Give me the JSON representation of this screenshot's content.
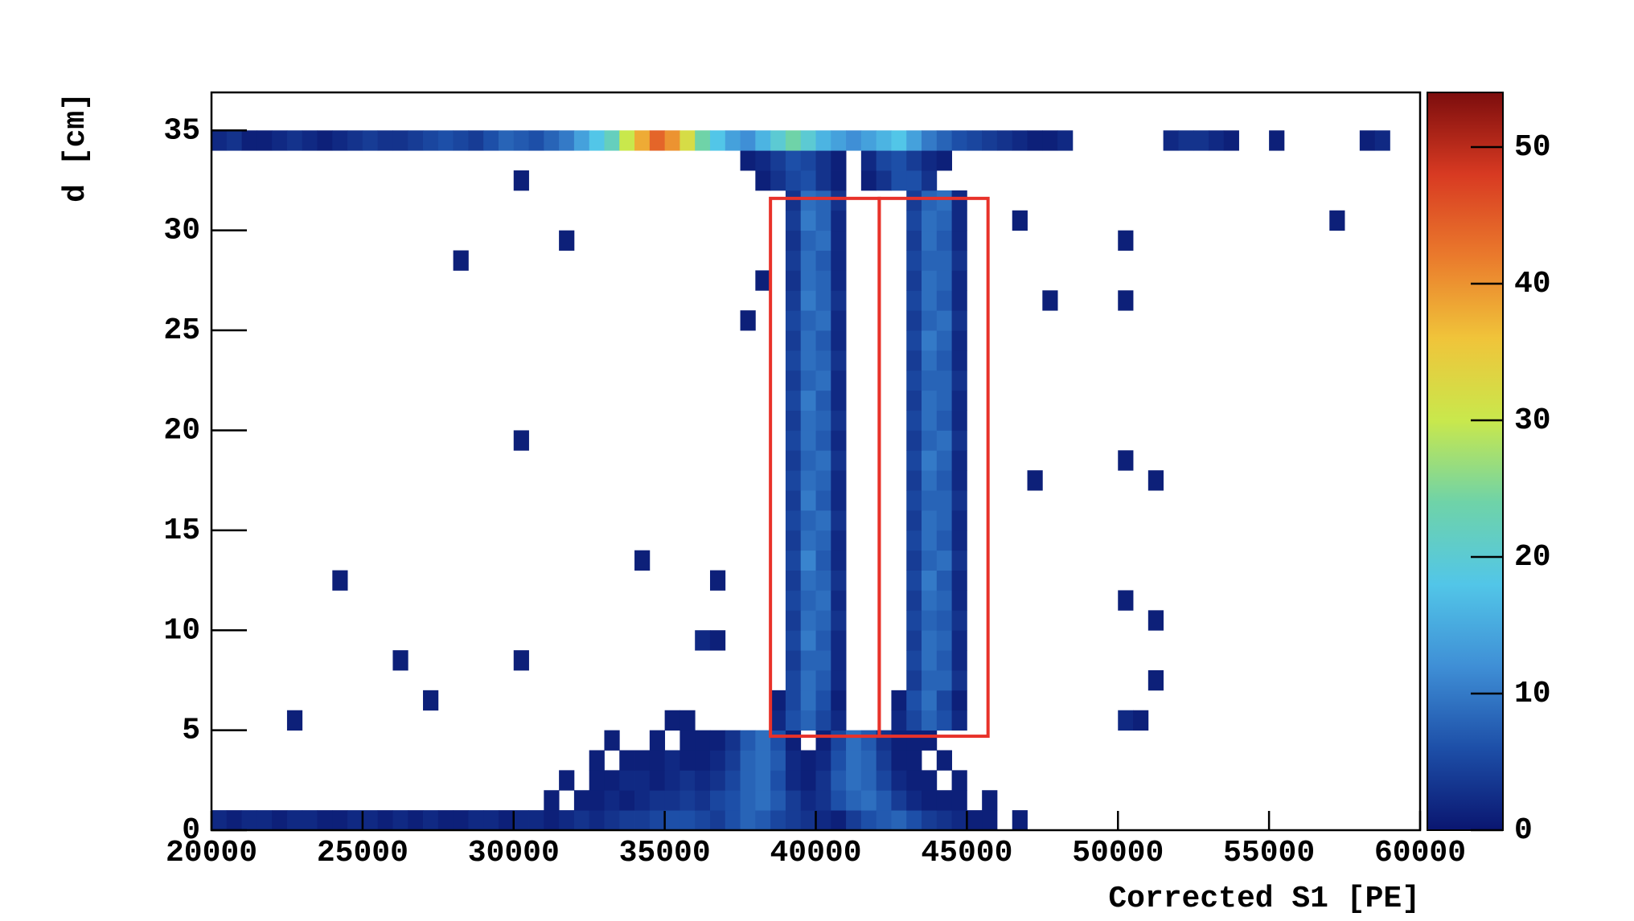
{
  "chart_data": {
    "type": "heatmap",
    "xlabel": "Corrected S1 [PE]",
    "ylabel": "d [cm]",
    "xlim": [
      20000,
      60000
    ],
    "xticks": [
      20000,
      25000,
      30000,
      35000,
      40000,
      45000,
      50000,
      55000,
      60000
    ],
    "ylim": [
      0,
      36.9
    ],
    "yticks": [
      0,
      5,
      10,
      15,
      20,
      25,
      30,
      35
    ],
    "zlim": [
      0,
      54
    ],
    "zticks": [
      0,
      10,
      20,
      30,
      40,
      50
    ],
    "colors": [
      "#0a1670",
      "#1d4fa8",
      "#3f8fd6",
      "#52c6e8",
      "#6fd3a8",
      "#c9e84c",
      "#f0c43a",
      "#ea7a2c",
      "#d83a22",
      "#7c0d0d"
    ],
    "xbin": 500,
    "ybin": 1,
    "runs": [
      [
        0,
        20000,
        [
          2,
          1,
          2,
          2,
          1,
          2,
          2,
          1,
          1,
          2,
          2,
          1,
          2,
          1,
          2,
          1,
          1,
          2,
          2,
          1,
          2,
          2,
          1,
          2,
          3,
          2,
          3,
          4,
          4,
          5,
          6,
          6,
          5,
          4,
          6,
          8,
          7,
          5,
          4,
          3,
          2,
          1,
          4,
          6,
          7,
          8,
          6,
          4,
          3,
          2,
          1,
          1,
          0,
          1
        ]
      ],
      [
        1,
        31000,
        [
          1,
          0,
          1,
          1,
          2,
          1,
          2,
          3,
          3,
          4,
          3,
          5,
          6,
          8,
          9,
          7,
          4,
          2,
          3,
          6,
          8,
          9,
          7,
          4,
          2,
          1,
          1,
          1,
          0,
          1
        ]
      ],
      [
        2,
        31500,
        [
          1,
          0,
          1,
          1,
          2,
          2,
          1,
          2,
          3,
          2,
          3,
          5,
          8,
          9,
          6,
          2,
          1,
          3,
          7,
          9,
          8,
          5,
          2,
          1,
          1,
          0,
          1
        ]
      ],
      [
        3,
        32500,
        [
          1,
          0,
          1,
          1,
          1,
          2,
          1,
          1,
          2,
          4,
          8,
          9,
          7,
          2,
          1,
          2,
          6,
          9,
          8,
          4,
          1,
          1,
          0,
          1
        ]
      ],
      [
        4,
        33000,
        [
          1,
          0,
          0,
          1,
          0,
          1,
          1,
          1,
          3,
          7,
          9,
          6,
          1,
          0,
          1,
          5,
          9,
          7,
          3,
          1,
          1,
          1
        ]
      ],
      [
        5,
        38500,
        [
          2,
          6,
          8,
          5,
          2
        ]
      ],
      [
        5,
        42500,
        [
          2,
          5,
          8,
          6,
          2
        ]
      ],
      [
        6,
        38500,
        [
          1,
          5,
          9,
          6,
          1
        ]
      ],
      [
        6,
        42500,
        [
          1,
          6,
          9,
          5,
          1
        ]
      ],
      [
        7,
        39000,
        [
          5,
          9,
          7,
          2
        ]
      ],
      [
        7,
        43000,
        [
          4,
          8,
          8,
          3
        ]
      ],
      [
        8,
        39000,
        [
          4,
          8,
          8,
          2
        ]
      ],
      [
        8,
        43000,
        [
          5,
          9,
          7,
          2
        ]
      ],
      [
        9,
        39000,
        [
          5,
          10,
          7,
          2
        ]
      ],
      [
        9,
        43000,
        [
          4,
          9,
          8,
          2
        ]
      ],
      [
        10,
        39000,
        [
          4,
          9,
          8,
          3
        ]
      ],
      [
        10,
        43000,
        [
          5,
          8,
          7,
          3
        ]
      ],
      [
        11,
        39000,
        [
          5,
          8,
          9,
          2
        ]
      ],
      [
        11,
        43000,
        [
          4,
          9,
          8,
          2
        ]
      ],
      [
        12,
        39000,
        [
          4,
          9,
          8,
          3
        ]
      ],
      [
        12,
        43000,
        [
          5,
          10,
          7,
          2
        ]
      ],
      [
        13,
        39000,
        [
          5,
          11,
          7,
          2
        ]
      ],
      [
        13,
        43000,
        [
          4,
          8,
          9,
          3
        ]
      ],
      [
        14,
        39000,
        [
          4,
          9,
          8,
          2
        ]
      ],
      [
        14,
        43000,
        [
          5,
          9,
          7,
          2
        ]
      ],
      [
        15,
        39000,
        [
          5,
          8,
          9,
          3
        ]
      ],
      [
        15,
        43000,
        [
          4,
          9,
          8,
          2
        ]
      ],
      [
        16,
        39000,
        [
          4,
          10,
          7,
          2
        ]
      ],
      [
        16,
        43000,
        [
          5,
          8,
          8,
          3
        ]
      ],
      [
        17,
        39000,
        [
          5,
          9,
          8,
          2
        ]
      ],
      [
        17,
        43000,
        [
          4,
          9,
          7,
          2
        ]
      ],
      [
        18,
        39000,
        [
          4,
          8,
          9,
          3
        ]
      ],
      [
        18,
        43000,
        [
          5,
          10,
          8,
          2
        ]
      ],
      [
        19,
        39000,
        [
          5,
          9,
          7,
          2
        ]
      ],
      [
        19,
        43000,
        [
          4,
          8,
          9,
          3
        ]
      ],
      [
        20,
        39000,
        [
          4,
          9,
          8,
          3
        ]
      ],
      [
        20,
        43000,
        [
          5,
          9,
          7,
          2
        ]
      ],
      [
        21,
        39000,
        [
          5,
          10,
          7,
          2
        ]
      ],
      [
        21,
        43000,
        [
          4,
          9,
          8,
          2
        ]
      ],
      [
        22,
        39000,
        [
          4,
          8,
          9,
          2
        ]
      ],
      [
        22,
        43000,
        [
          5,
          8,
          8,
          3
        ]
      ],
      [
        23,
        39000,
        [
          5,
          9,
          8,
          3
        ]
      ],
      [
        23,
        43000,
        [
          4,
          9,
          7,
          2
        ]
      ],
      [
        24,
        39000,
        [
          4,
          9,
          7,
          2
        ]
      ],
      [
        24,
        43000,
        [
          5,
          10,
          8,
          2
        ]
      ],
      [
        25,
        39000,
        [
          5,
          8,
          9,
          2
        ]
      ],
      [
        25,
        43000,
        [
          4,
          8,
          9,
          3
        ]
      ],
      [
        26,
        39000,
        [
          4,
          10,
          8,
          3
        ]
      ],
      [
        26,
        43000,
        [
          5,
          9,
          7,
          2
        ]
      ],
      [
        27,
        39000,
        [
          3,
          9,
          8,
          2
        ]
      ],
      [
        27,
        43000,
        [
          4,
          9,
          8,
          2
        ]
      ],
      [
        28,
        39000,
        [
          4,
          9,
          7,
          2
        ]
      ],
      [
        28,
        43000,
        [
          5,
          8,
          8,
          3
        ]
      ],
      [
        29,
        39000,
        [
          3,
          8,
          9,
          2
        ]
      ],
      [
        29,
        43000,
        [
          4,
          9,
          7,
          2
        ]
      ],
      [
        30,
        39000,
        [
          4,
          10,
          8,
          2
        ]
      ],
      [
        30,
        43000,
        [
          5,
          9,
          8,
          2
        ]
      ],
      [
        31,
        39000,
        [
          3,
          9,
          8,
          3
        ]
      ],
      [
        31,
        43000,
        [
          4,
          8,
          9,
          2
        ]
      ],
      [
        32,
        38000,
        [
          1,
          3,
          5,
          6,
          3,
          1,
          0,
          1,
          3,
          6,
          6,
          3
        ]
      ],
      [
        33,
        37500,
        [
          1,
          2,
          4,
          6,
          5,
          3,
          1,
          0,
          2,
          5,
          6,
          4,
          2,
          1
        ]
      ],
      [
        34,
        20000,
        [
          2,
          3,
          1,
          1,
          2,
          3,
          2,
          1,
          2,
          3,
          4,
          3,
          3,
          4,
          5,
          6,
          5,
          4,
          6,
          8,
          7,
          6,
          8,
          10,
          14,
          18,
          22,
          30,
          38,
          44,
          40,
          32,
          24,
          18,
          14,
          12,
          16,
          20,
          24,
          20,
          16,
          14,
          12,
          14,
          16,
          18,
          14,
          10,
          8,
          6,
          5,
          4,
          3,
          2,
          1,
          1,
          2,
          0,
          0,
          0,
          0,
          0,
          0,
          2,
          3,
          3,
          2,
          1,
          0,
          0,
          1,
          0,
          0,
          0,
          0,
          0,
          1,
          2
        ]
      ],
      [
        28,
        28000,
        [
          1
        ]
      ],
      [
        32,
        30000,
        [
          1
        ]
      ],
      [
        29,
        31500,
        [
          1
        ]
      ],
      [
        19,
        30000,
        [
          1
        ]
      ],
      [
        12,
        24000,
        [
          1
        ]
      ],
      [
        8,
        26000,
        [
          1
        ]
      ],
      [
        8,
        30000,
        [
          1
        ]
      ],
      [
        6,
        27000,
        [
          1
        ]
      ],
      [
        5,
        22500,
        [
          1
        ]
      ],
      [
        12,
        36500,
        [
          1
        ]
      ],
      [
        9,
        36000,
        [
          2,
          1
        ]
      ],
      [
        30,
        57000,
        [
          1
        ]
      ],
      [
        26,
        50000,
        [
          1
        ]
      ],
      [
        29,
        50000,
        [
          1
        ]
      ],
      [
        18,
        50000,
        [
          1
        ]
      ],
      [
        17,
        51000,
        [
          1
        ]
      ],
      [
        11,
        50000,
        [
          1
        ]
      ],
      [
        10,
        51000,
        [
          1
        ]
      ],
      [
        7,
        51000,
        [
          1
        ]
      ],
      [
        5,
        50000,
        [
          2,
          1
        ]
      ],
      [
        26,
        47500,
        [
          1
        ]
      ],
      [
        30,
        46500,
        [
          1
        ]
      ],
      [
        17,
        47000,
        [
          1
        ]
      ],
      [
        13,
        34000,
        [
          1
        ]
      ],
      [
        5,
        35000,
        [
          1,
          1
        ]
      ],
      [
        25,
        37500,
        [
          1
        ]
      ],
      [
        27,
        38000,
        [
          1
        ]
      ]
    ],
    "regions": [
      {
        "x": [
          38500,
          42100
        ],
        "y": [
          4.7,
          31.6
        ],
        "color": "#e8322a"
      },
      {
        "x": [
          42100,
          45700
        ],
        "y": [
          4.7,
          31.6
        ],
        "color": "#e8322a"
      }
    ]
  }
}
